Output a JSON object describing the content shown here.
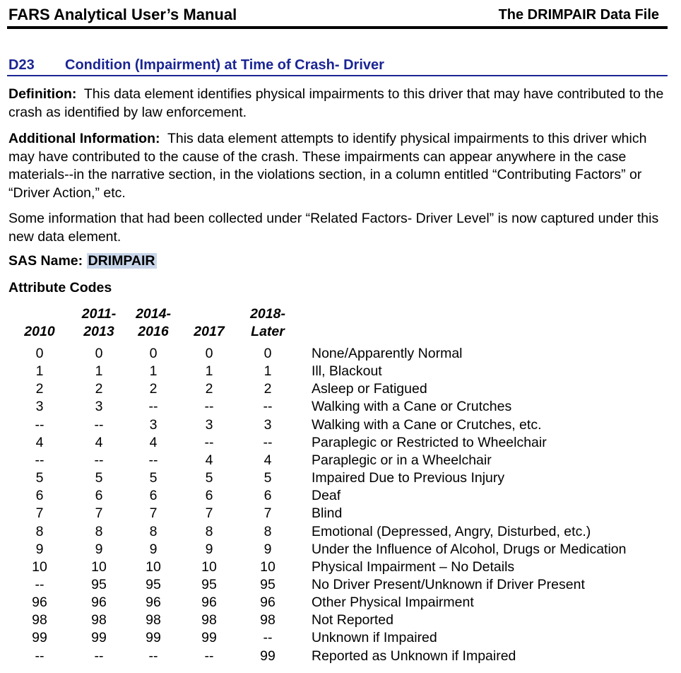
{
  "header": {
    "left": "FARS Analytical User’s Manual",
    "right": "The DRIMPAIR Data File"
  },
  "section": {
    "number": "D23",
    "title": "Condition (Impairment) at Time of Crash- Driver"
  },
  "definition": {
    "label": "Definition:",
    "text": "This data element identifies physical impairments to this driver that may have contributed to the crash as identified by law enforcement."
  },
  "additional": {
    "label": "Additional Information:",
    "text": "This data element attempts to identify physical impairments to this driver which may have contributed to the cause of the crash. These impairments can appear anywhere in the case materials--in the narrative section, in the violations section, in a column entitled “Contributing Factors” or “Driver Action,” etc."
  },
  "note": "Some information that had been collected under “Related Factors- Driver Level” is now captured under this new data element.",
  "sas": {
    "label": "SAS Name:",
    "value": "DRIMPAIR"
  },
  "attribute_heading": "Attribute Codes",
  "columns": [
    {
      "line1": "",
      "line2": "2010"
    },
    {
      "line1": "2011-",
      "line2": "2013"
    },
    {
      "line1": "2014-",
      "line2": "2016"
    },
    {
      "line1": "",
      "line2": "2017"
    },
    {
      "line1": "2018-",
      "line2": "Later"
    }
  ],
  "rows": [
    {
      "codes": [
        "0",
        "0",
        "0",
        "0",
        "0"
      ],
      "label": "None/Apparently Normal"
    },
    {
      "codes": [
        "1",
        "1",
        "1",
        "1",
        "1"
      ],
      "label": "Ill, Blackout"
    },
    {
      "codes": [
        "2",
        "2",
        "2",
        "2",
        "2"
      ],
      "label": "Asleep or Fatigued"
    },
    {
      "codes": [
        "3",
        "3",
        "--",
        "--",
        "--"
      ],
      "label": "Walking with a Cane or Crutches"
    },
    {
      "codes": [
        "--",
        "--",
        "3",
        "3",
        "3"
      ],
      "label": "Walking with a Cane or Crutches, etc."
    },
    {
      "codes": [
        "4",
        "4",
        "4",
        "--",
        "--"
      ],
      "label": "Paraplegic or Restricted to Wheelchair"
    },
    {
      "codes": [
        "--",
        "--",
        "--",
        "4",
        "4"
      ],
      "label": "Paraplegic or in a Wheelchair"
    },
    {
      "codes": [
        "5",
        "5",
        "5",
        "5",
        "5"
      ],
      "label": "Impaired Due to Previous Injury"
    },
    {
      "codes": [
        "6",
        "6",
        "6",
        "6",
        "6"
      ],
      "label": "Deaf"
    },
    {
      "codes": [
        "7",
        "7",
        "7",
        "7",
        "7"
      ],
      "label": "Blind"
    },
    {
      "codes": [
        "8",
        "8",
        "8",
        "8",
        "8"
      ],
      "label": "Emotional (Depressed, Angry, Disturbed, etc.)"
    },
    {
      "codes": [
        "9",
        "9",
        "9",
        "9",
        "9"
      ],
      "label": "Under the Influence of Alcohol, Drugs or Medication"
    },
    {
      "codes": [
        "10",
        "10",
        "10",
        "10",
        "10"
      ],
      "label": "Physical Impairment – No Details"
    },
    {
      "codes": [
        "--",
        "95",
        "95",
        "95",
        "95"
      ],
      "label": "No Driver Present/Unknown if Driver Present"
    },
    {
      "codes": [
        "96",
        "96",
        "96",
        "96",
        "96"
      ],
      "label": "Other Physical Impairment"
    },
    {
      "codes": [
        "98",
        "98",
        "98",
        "98",
        "98"
      ],
      "label": "Not Reported"
    },
    {
      "codes": [
        "99",
        "99",
        "99",
        "99",
        "--"
      ],
      "label": "Unknown if Impaired"
    },
    {
      "codes": [
        "--",
        "--",
        "--",
        "--",
        "99"
      ],
      "label": "Reported as Unknown if Impaired"
    }
  ]
}
